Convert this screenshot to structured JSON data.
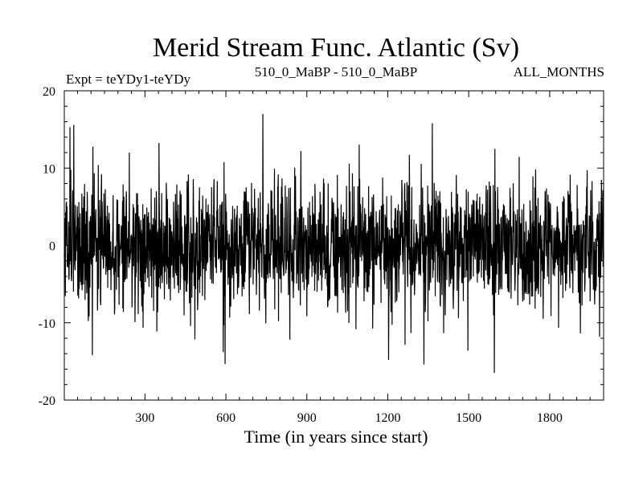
{
  "chart_data": {
    "type": "line",
    "title": "Merid Stream Func. Atlantic (Sv)",
    "subtitle_left": "Expt = teYDy1-teYDy",
    "subtitle_center": "510_0_MaBP - 510_0_MaBP",
    "subtitle_right": "ALL_MONTHS",
    "xlabel": "Time (in years since start)",
    "ylabel": "",
    "xlim": [
      1,
      2000
    ],
    "ylim": [
      -20,
      20
    ],
    "x_ticks": [
      300,
      600,
      900,
      1200,
      1500,
      1800
    ],
    "y_ticks": [
      -20,
      -10,
      0,
      10,
      20
    ],
    "x_tick_labels": [
      "300",
      "600",
      "900",
      "1200",
      "1500",
      "1800"
    ],
    "y_tick_labels": [
      "-20",
      "-10",
      "0",
      "10",
      "20"
    ],
    "grid": false,
    "series": [
      {
        "name": "Merid Stream Func. Atlantic",
        "color": "#000000",
        "n_points": 2000,
        "x_start": 1,
        "x_step": 1,
        "mean": 0.0,
        "std": 4.2,
        "min": -16.5,
        "max": 17.0,
        "seed": 510,
        "highlights": [
          {
            "x": 22,
            "y": 15.3
          },
          {
            "x": 36,
            "y": 15.6
          },
          {
            "x": 105,
            "y": -14.2
          },
          {
            "x": 590,
            "y": -13.8
          },
          {
            "x": 737,
            "y": 17.0
          },
          {
            "x": 1203,
            "y": -14.8
          },
          {
            "x": 1334,
            "y": -15.4
          },
          {
            "x": 1365,
            "y": 15.8
          },
          {
            "x": 1595,
            "y": -16.5
          },
          {
            "x": 1597,
            "y": 12.5
          },
          {
            "x": 1985,
            "y": -11.8
          }
        ]
      }
    ]
  }
}
